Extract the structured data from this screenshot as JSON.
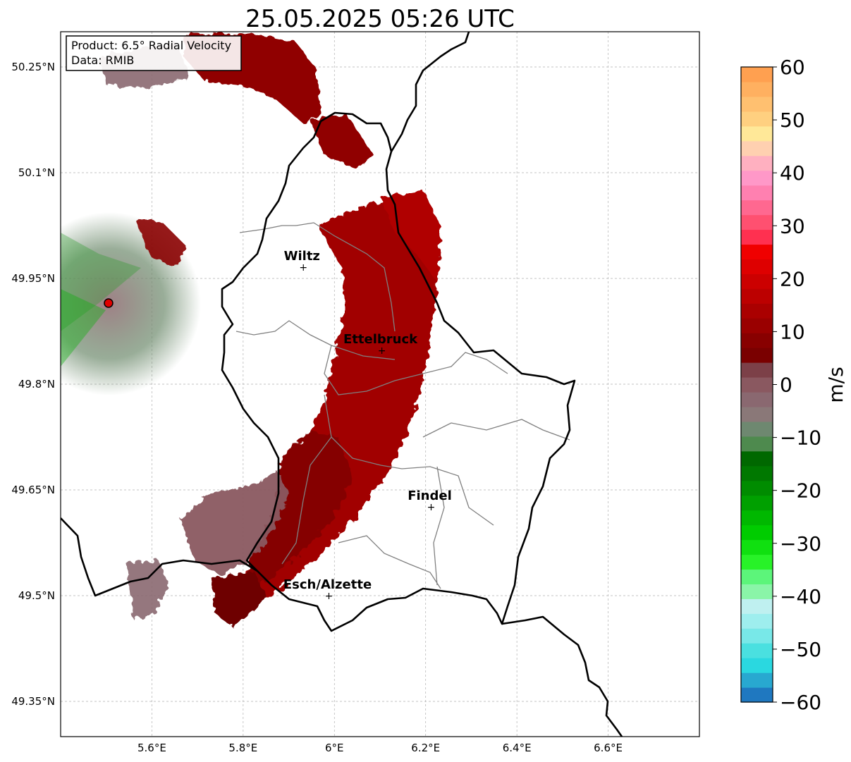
{
  "title": "25.05.2025 05:26 UTC",
  "info_box": {
    "product": "Product: 6.5° Radial Velocity",
    "data_source": "Data: RMIB"
  },
  "map": {
    "lon_range": [
      5.4,
      6.8
    ],
    "lat_range": [
      49.3,
      50.3
    ],
    "lat_ticks": [
      {
        "value": 50.25,
        "label": "50.25°N"
      },
      {
        "value": 50.1,
        "label": "50.1°N"
      },
      {
        "value": 49.95,
        "label": "49.95°N"
      },
      {
        "value": 49.8,
        "label": "49.8°N"
      },
      {
        "value": 49.65,
        "label": "49.65°N"
      },
      {
        "value": 49.5,
        "label": "49.5°N"
      },
      {
        "value": 49.35,
        "label": "49.35°N"
      }
    ],
    "lon_ticks": [
      {
        "value": 5.6,
        "label": "5.6°E"
      },
      {
        "value": 5.8,
        "label": "5.8°E"
      },
      {
        "value": 6.0,
        "label": "6°E"
      },
      {
        "value": 6.2,
        "label": "6.2°E"
      },
      {
        "value": 6.4,
        "label": "6.4°E"
      },
      {
        "value": 6.6,
        "label": "6.6°E"
      }
    ],
    "grid": true,
    "radar_site": {
      "lon": 5.505,
      "lat": 49.915,
      "color": "#e00000"
    },
    "cities": [
      {
        "name": "Wiltz",
        "lon": 5.932,
        "lat": 49.966
      },
      {
        "name": "Ettelbruck",
        "lon": 6.104,
        "lat": 49.848
      },
      {
        "name": "Findel",
        "lon": 6.212,
        "lat": 49.626
      },
      {
        "name": "Esch/Alzette",
        "lon": 5.988,
        "lat": 49.5
      }
    ]
  },
  "colorbar": {
    "label": "m/s",
    "min": -60,
    "max": 60,
    "ticks": [
      {
        "value": 60,
        "label": "60"
      },
      {
        "value": 50,
        "label": "50"
      },
      {
        "value": 40,
        "label": "40"
      },
      {
        "value": 30,
        "label": "30"
      },
      {
        "value": 20,
        "label": "20"
      },
      {
        "value": 10,
        "label": "10"
      },
      {
        "value": 0,
        "label": "0"
      },
      {
        "value": -10,
        "label": "−10"
      },
      {
        "value": -20,
        "label": "−20"
      },
      {
        "value": -30,
        "label": "−30"
      },
      {
        "value": -40,
        "label": "−40"
      },
      {
        "value": -50,
        "label": "−50"
      },
      {
        "value": -60,
        "label": "−60"
      }
    ],
    "colors": [
      "#1f78c0",
      "#28a8d0",
      "#2ad8e0",
      "#4ae0e0",
      "#78e8e8",
      "#9eeeee",
      "#bff0f0",
      "#8af5a8",
      "#5cf57a",
      "#28f228",
      "#10e010",
      "#00cc00",
      "#00b800",
      "#00a000",
      "#008c00",
      "#007800",
      "#006800",
      "#4e8a4e",
      "#6e8870",
      "#8a7878",
      "#8a6870",
      "#8a5860",
      "#7c4048",
      "#7a0000",
      "#880000",
      "#9a0000",
      "#aa0000",
      "#bc0000",
      "#cc0000",
      "#de0000",
      "#f00000",
      "#ff3050",
      "#ff5070",
      "#ff6890",
      "#ff80b0",
      "#ff98c8",
      "#ffb0c0",
      "#ffd0b0",
      "#ffe898",
      "#ffd080",
      "#ffc070",
      "#ffb060",
      "#ffa050"
    ]
  }
}
